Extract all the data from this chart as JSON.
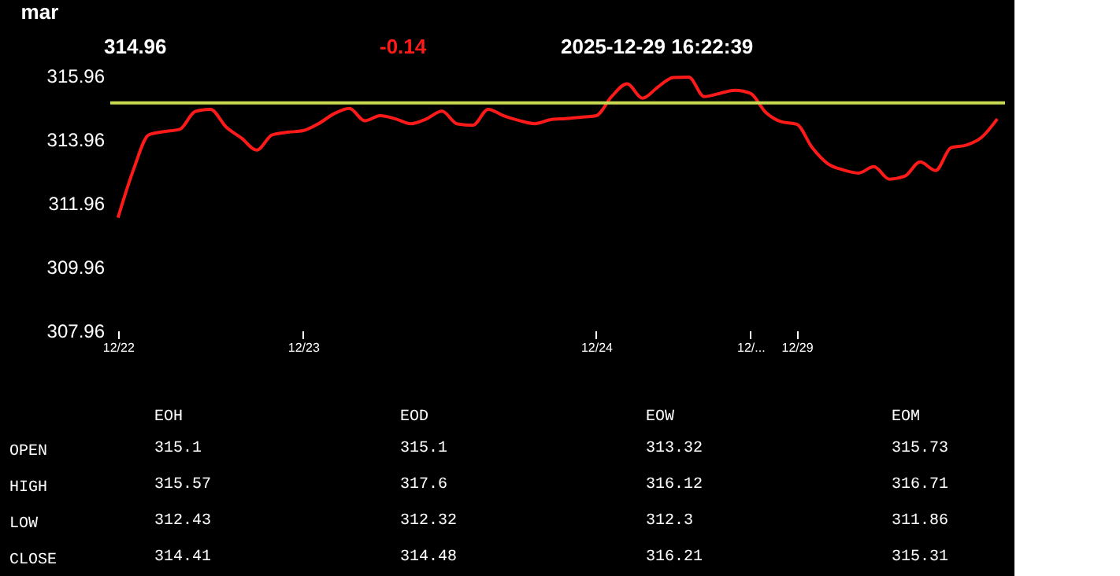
{
  "chart_data": [
    {
      "type": "line",
      "title": "mar",
      "annotations": [
        "314.96",
        "-0.14",
        "2025-12-29   16:22:39"
      ],
      "categories": [
        "12/22",
        null,
        null,
        null,
        null,
        null,
        null,
        null,
        null,
        null,
        null,
        null,
        "12/23",
        null,
        null,
        null,
        null,
        null,
        null,
        null,
        null,
        null,
        null,
        null,
        null,
        null,
        null,
        null,
        null,
        null,
        null,
        "12/24",
        null,
        null,
        null,
        null,
        null,
        null,
        null,
        null,
        null,
        "12/...",
        null,
        null,
        "12/29",
        null,
        null,
        null,
        null,
        null,
        null,
        null,
        null,
        null,
        null,
        null,
        null,
        null
      ],
      "series": [
        {
          "color": "#ff1a1a",
          "values": [
            311.5,
            313.0,
            314.1,
            314.2,
            314.27,
            314.83,
            314.9,
            314.35,
            314.0,
            313.62,
            314.1,
            314.18,
            314.23,
            314.45,
            314.76,
            314.93,
            314.54,
            314.7,
            314.6,
            314.45,
            314.6,
            314.84,
            314.44,
            314.4,
            314.9,
            314.7,
            314.55,
            314.45,
            314.57,
            314.61,
            314.65,
            314.7,
            315.3,
            315.7,
            315.25,
            315.6,
            315.9,
            315.91,
            315.3,
            315.4,
            315.5,
            315.4,
            314.8,
            314.51,
            314.43,
            313.7,
            313.2,
            313.0,
            312.9,
            313.1,
            312.71,
            312.8,
            313.25,
            312.98,
            313.7,
            313.78,
            314.03,
            314.6
          ]
        }
      ],
      "ylim": [
        307.96,
        315.96
      ],
      "yticks": [
        307.96,
        309.96,
        311.96,
        313.96,
        315.96
      ],
      "ref_lines": [
        {
          "axis": "y",
          "value": 315.1,
          "color": "#c8d850",
          "line_style": "solid"
        }
      ],
      "grid": false,
      "marker": "none",
      "line_style": "solid"
    },
    {
      "type": "other",
      "categories": [
        "EOH",
        "EOD",
        "EOW",
        "EOM"
      ],
      "y_categories": [
        "OPEN",
        "HIGH",
        "LOW",
        "CLOSE"
      ],
      "cell_labels": [
        [
          "315.1",
          "315.1",
          "313.32",
          "315.73"
        ],
        [
          "315.57",
          "317.6",
          "316.12",
          "316.71"
        ],
        [
          "312.43",
          "312.32",
          "312.3",
          "311.86"
        ],
        [
          "314.41",
          "314.48",
          "316.21",
          "315.31"
        ]
      ]
    }
  ]
}
